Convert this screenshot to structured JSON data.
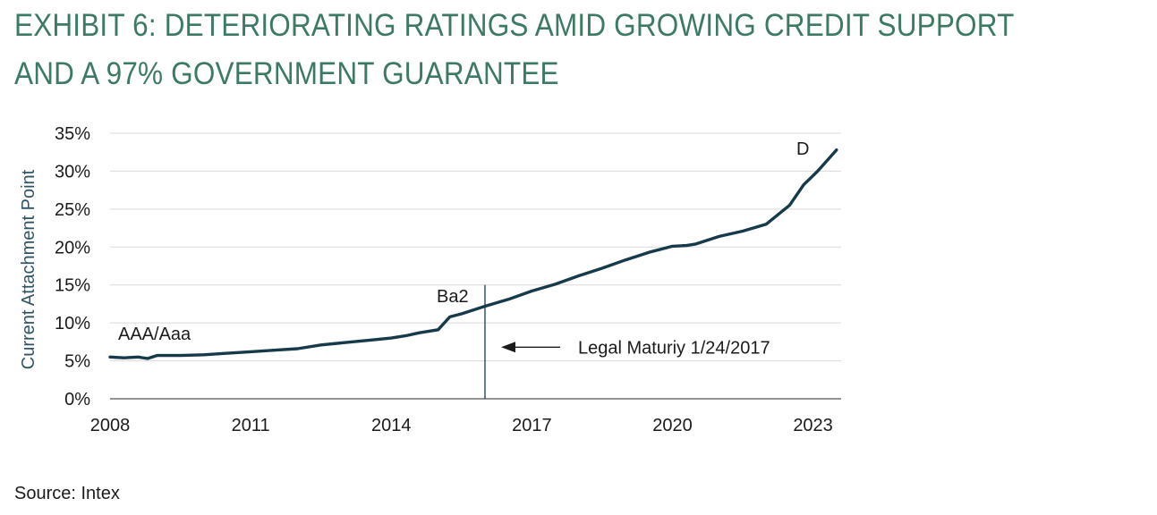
{
  "title": "EXHIBIT 6: DETERIORATING RATINGS AMID GROWING CREDIT SUPPORT AND A 97% GOVERNMENT GUARANTEE",
  "source": "Source: Intex",
  "colors": {
    "title": "#3d7a63",
    "line": "#173a4a",
    "grid": "#d9d9d9",
    "axis_label": "#2e5566"
  },
  "chart_data": {
    "type": "line",
    "ylabel": "Current Attachment Point",
    "xlabel": "",
    "ylim": [
      0,
      35
    ],
    "xlim": [
      2008,
      2023.6
    ],
    "grid": "horizontal",
    "y_ticks": [
      "0%",
      "5%",
      "10%",
      "15%",
      "20%",
      "25%",
      "30%",
      "35%"
    ],
    "x_ticks": [
      "2008",
      "2011",
      "2014",
      "2017",
      "2020",
      "2023"
    ],
    "series": [
      {
        "x": [
          2008.0,
          2008.3,
          2008.6,
          2008.8,
          2009.0,
          2009.5,
          2010.0,
          2010.5,
          2011.0,
          2011.5,
          2012.0,
          2012.5,
          2013.0,
          2013.5,
          2014.0,
          2014.3,
          2014.6,
          2015.0,
          2015.25,
          2015.5,
          2016.0,
          2016.5,
          2017.0,
          2017.5,
          2018.0,
          2018.5,
          2019.0,
          2019.5,
          2020.0,
          2020.3,
          2020.5,
          2021.0,
          2021.5,
          2022.0,
          2022.5,
          2022.8,
          2023.1,
          2023.5
        ],
        "values": [
          5.5,
          5.4,
          5.5,
          5.3,
          5.7,
          5.7,
          5.8,
          6.0,
          6.2,
          6.4,
          6.6,
          7.1,
          7.4,
          7.7,
          8.0,
          8.3,
          8.7,
          9.1,
          10.8,
          11.2,
          12.2,
          13.1,
          14.2,
          15.1,
          16.2,
          17.2,
          18.3,
          19.3,
          20.1,
          20.2,
          20.4,
          21.4,
          22.1,
          23.0,
          25.5,
          28.2,
          30.0,
          32.8
        ]
      }
    ],
    "annotations": {
      "start_rating": "AAA/Aaa",
      "mid_rating": "Ba2",
      "end_rating": "D",
      "maturity_label": "Legal Maturiy 1/24/2017",
      "maturity_x": 2016.0
    }
  }
}
